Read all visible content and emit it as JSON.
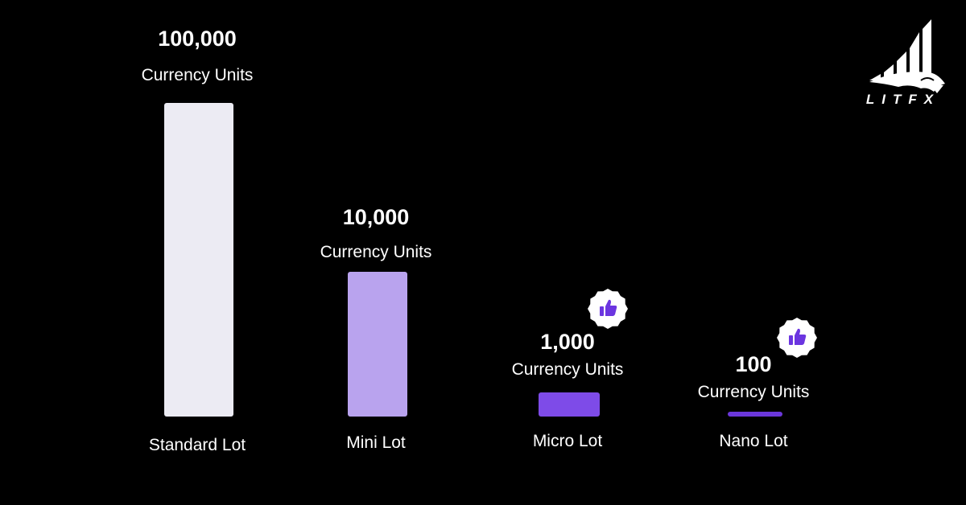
{
  "brand": {
    "name": "LITFX"
  },
  "chart_data": {
    "type": "bar",
    "categories": [
      "Standard Lot",
      "Mini Lot",
      "Micro Lot",
      "Nano Lot"
    ],
    "values": [
      100000,
      10000,
      1000,
      100
    ],
    "value_labels": [
      "100,000",
      "10,000",
      "1,000",
      "100"
    ],
    "unit_label": "Currency Units",
    "colors": [
      "#ECEBF3",
      "#B9A3EE",
      "#7E4BE8",
      "#6B37DB"
    ],
    "highlight": [
      false,
      false,
      true,
      true
    ],
    "highlight_icon": "thumbs-up-icon",
    "icon_color": "#6B35E0"
  }
}
